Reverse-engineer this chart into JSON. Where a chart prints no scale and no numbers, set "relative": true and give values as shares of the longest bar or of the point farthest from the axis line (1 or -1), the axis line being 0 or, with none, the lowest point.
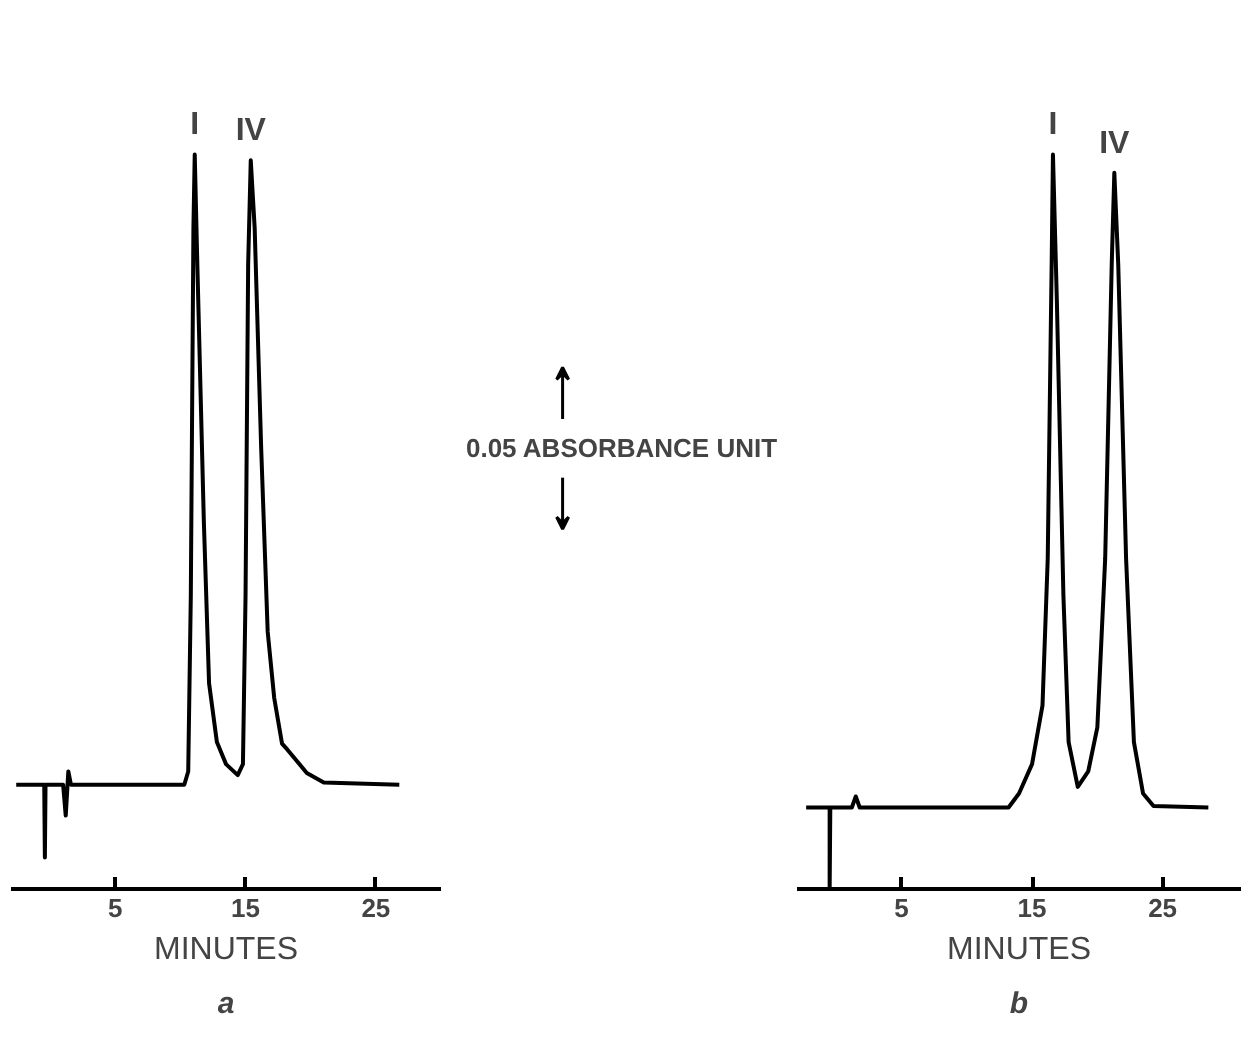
{
  "chart_data": [
    {
      "type": "line",
      "title": "a",
      "xlabel": "MINUTES",
      "relative": true,
      "xlim": [
        -3,
        30
      ],
      "xticks": [
        5,
        15,
        25
      ],
      "grid": false,
      "marker": "none",
      "line_style": "solid",
      "x": [
        -2.6,
        -0.45,
        -0.4,
        -0.35,
        1.0,
        1.2,
        1.4,
        1.6,
        10.3,
        10.6,
        10.8,
        11.0,
        11.1,
        11.3,
        11.8,
        12.2,
        12.8,
        13.5,
        14.4,
        14.8,
        15.0,
        15.2,
        15.4,
        15.7,
        16.2,
        16.7,
        17.2,
        17.8,
        18.2,
        19.7,
        21.0,
        26.8
      ],
      "series": [
        {
          "color": "#000000",
          "values": [
            0.142,
            0.142,
            0.043,
            0.142,
            0.142,
            0.1,
            0.16,
            0.142,
            0.142,
            0.16,
            0.4,
            0.9,
            1.0,
            0.85,
            0.5,
            0.28,
            0.2,
            0.17,
            0.155,
            0.17,
            0.4,
            0.85,
            0.992,
            0.9,
            0.6,
            0.35,
            0.26,
            0.198,
            0.19,
            0.158,
            0.145,
            0.142
          ]
        }
      ],
      "annotations": [
        {
          "text": "I",
          "x": 11.1,
          "y": 1.0
        },
        {
          "text": "IV",
          "x": 15.4,
          "y": 0.992
        }
      ]
    },
    {
      "type": "line",
      "title": "b",
      "xlabel": "MINUTES",
      "relative": true,
      "xlim": [
        -3,
        31
      ],
      "xticks": [
        5,
        15,
        25
      ],
      "grid": false,
      "marker": "none",
      "line_style": "solid",
      "x": [
        -2.3,
        -0.5,
        -0.5,
        -0.45,
        1.2,
        1.5,
        1.8,
        13.2,
        14.0,
        15.0,
        15.8,
        16.2,
        16.5,
        16.6,
        16.9,
        17.4,
        17.8,
        18.5,
        19.3,
        20.0,
        20.6,
        21.1,
        21.3,
        21.6,
        22.2,
        22.8,
        23.5,
        24.3,
        28.5
      ],
      "series": [
        {
          "color": "#000000",
          "values": [
            0.111,
            0.111,
            0.0,
            0.111,
            0.111,
            0.126,
            0.111,
            0.111,
            0.13,
            0.17,
            0.25,
            0.45,
            0.85,
            1.0,
            0.8,
            0.4,
            0.2,
            0.139,
            0.16,
            0.22,
            0.45,
            0.85,
            0.975,
            0.85,
            0.45,
            0.2,
            0.13,
            0.113,
            0.111
          ]
        }
      ],
      "annotations": [
        {
          "text": "I",
          "x": 16.6,
          "y": 1.0
        },
        {
          "text": "IV",
          "x": 21.3,
          "y": 0.975
        },
        "0.05 ABSORBANCE UNIT"
      ]
    }
  ]
}
